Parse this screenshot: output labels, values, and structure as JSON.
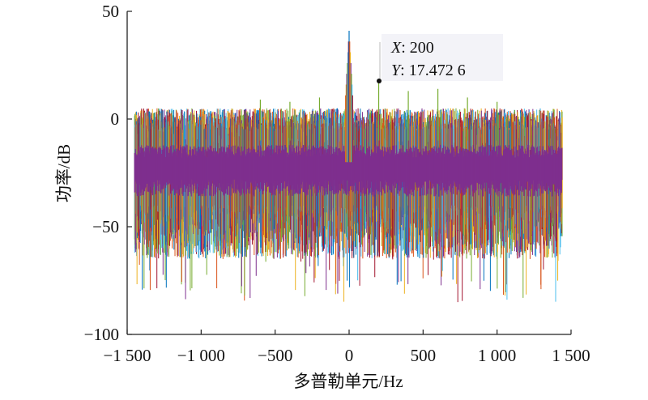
{
  "chart_data": {
    "type": "line",
    "title": "",
    "xlabel": "多普勒单元/Hz",
    "ylabel": "功率/dB",
    "xlim": [
      -1500,
      1500
    ],
    "ylim": [
      -100,
      50
    ],
    "xticks": [
      -1500,
      -1000,
      -500,
      0,
      500,
      1000,
      1500
    ],
    "xtick_labels": [
      "−1 500",
      "−1 000",
      "−500",
      "0",
      "500",
      "1 000",
      "1 500"
    ],
    "yticks": [
      -100,
      -50,
      0,
      50
    ],
    "ytick_labels": [
      "−100",
      "−50",
      "0",
      "50"
    ],
    "grid": false,
    "legend": "none",
    "series_description": "many overlapping multicolor noise spectra spanning about -1450 to 1450 Hz, mostly between -65 and 5 dB, main peak at 0 Hz reaching about 41 dB",
    "peak": {
      "x": 0,
      "y": 41
    },
    "spurs": [
      {
        "x": 200,
        "y": 17.4726
      },
      {
        "x": 400,
        "y": 13
      },
      {
        "x": 600,
        "y": 14
      },
      {
        "x": 800,
        "y": 10
      },
      {
        "x": 1000,
        "y": 8
      },
      {
        "x": -200,
        "y": 10
      },
      {
        "x": -400,
        "y": 8
      },
      {
        "x": -600,
        "y": 9
      }
    ],
    "datatip": {
      "x_label": "X",
      "x_value": "200",
      "y_label": "Y",
      "y_value": "17.472 6"
    },
    "colors": [
      "#0072bd",
      "#d95319",
      "#edb120",
      "#7e2f8e",
      "#77ac30",
      "#4dbeee",
      "#a2142f"
    ]
  }
}
